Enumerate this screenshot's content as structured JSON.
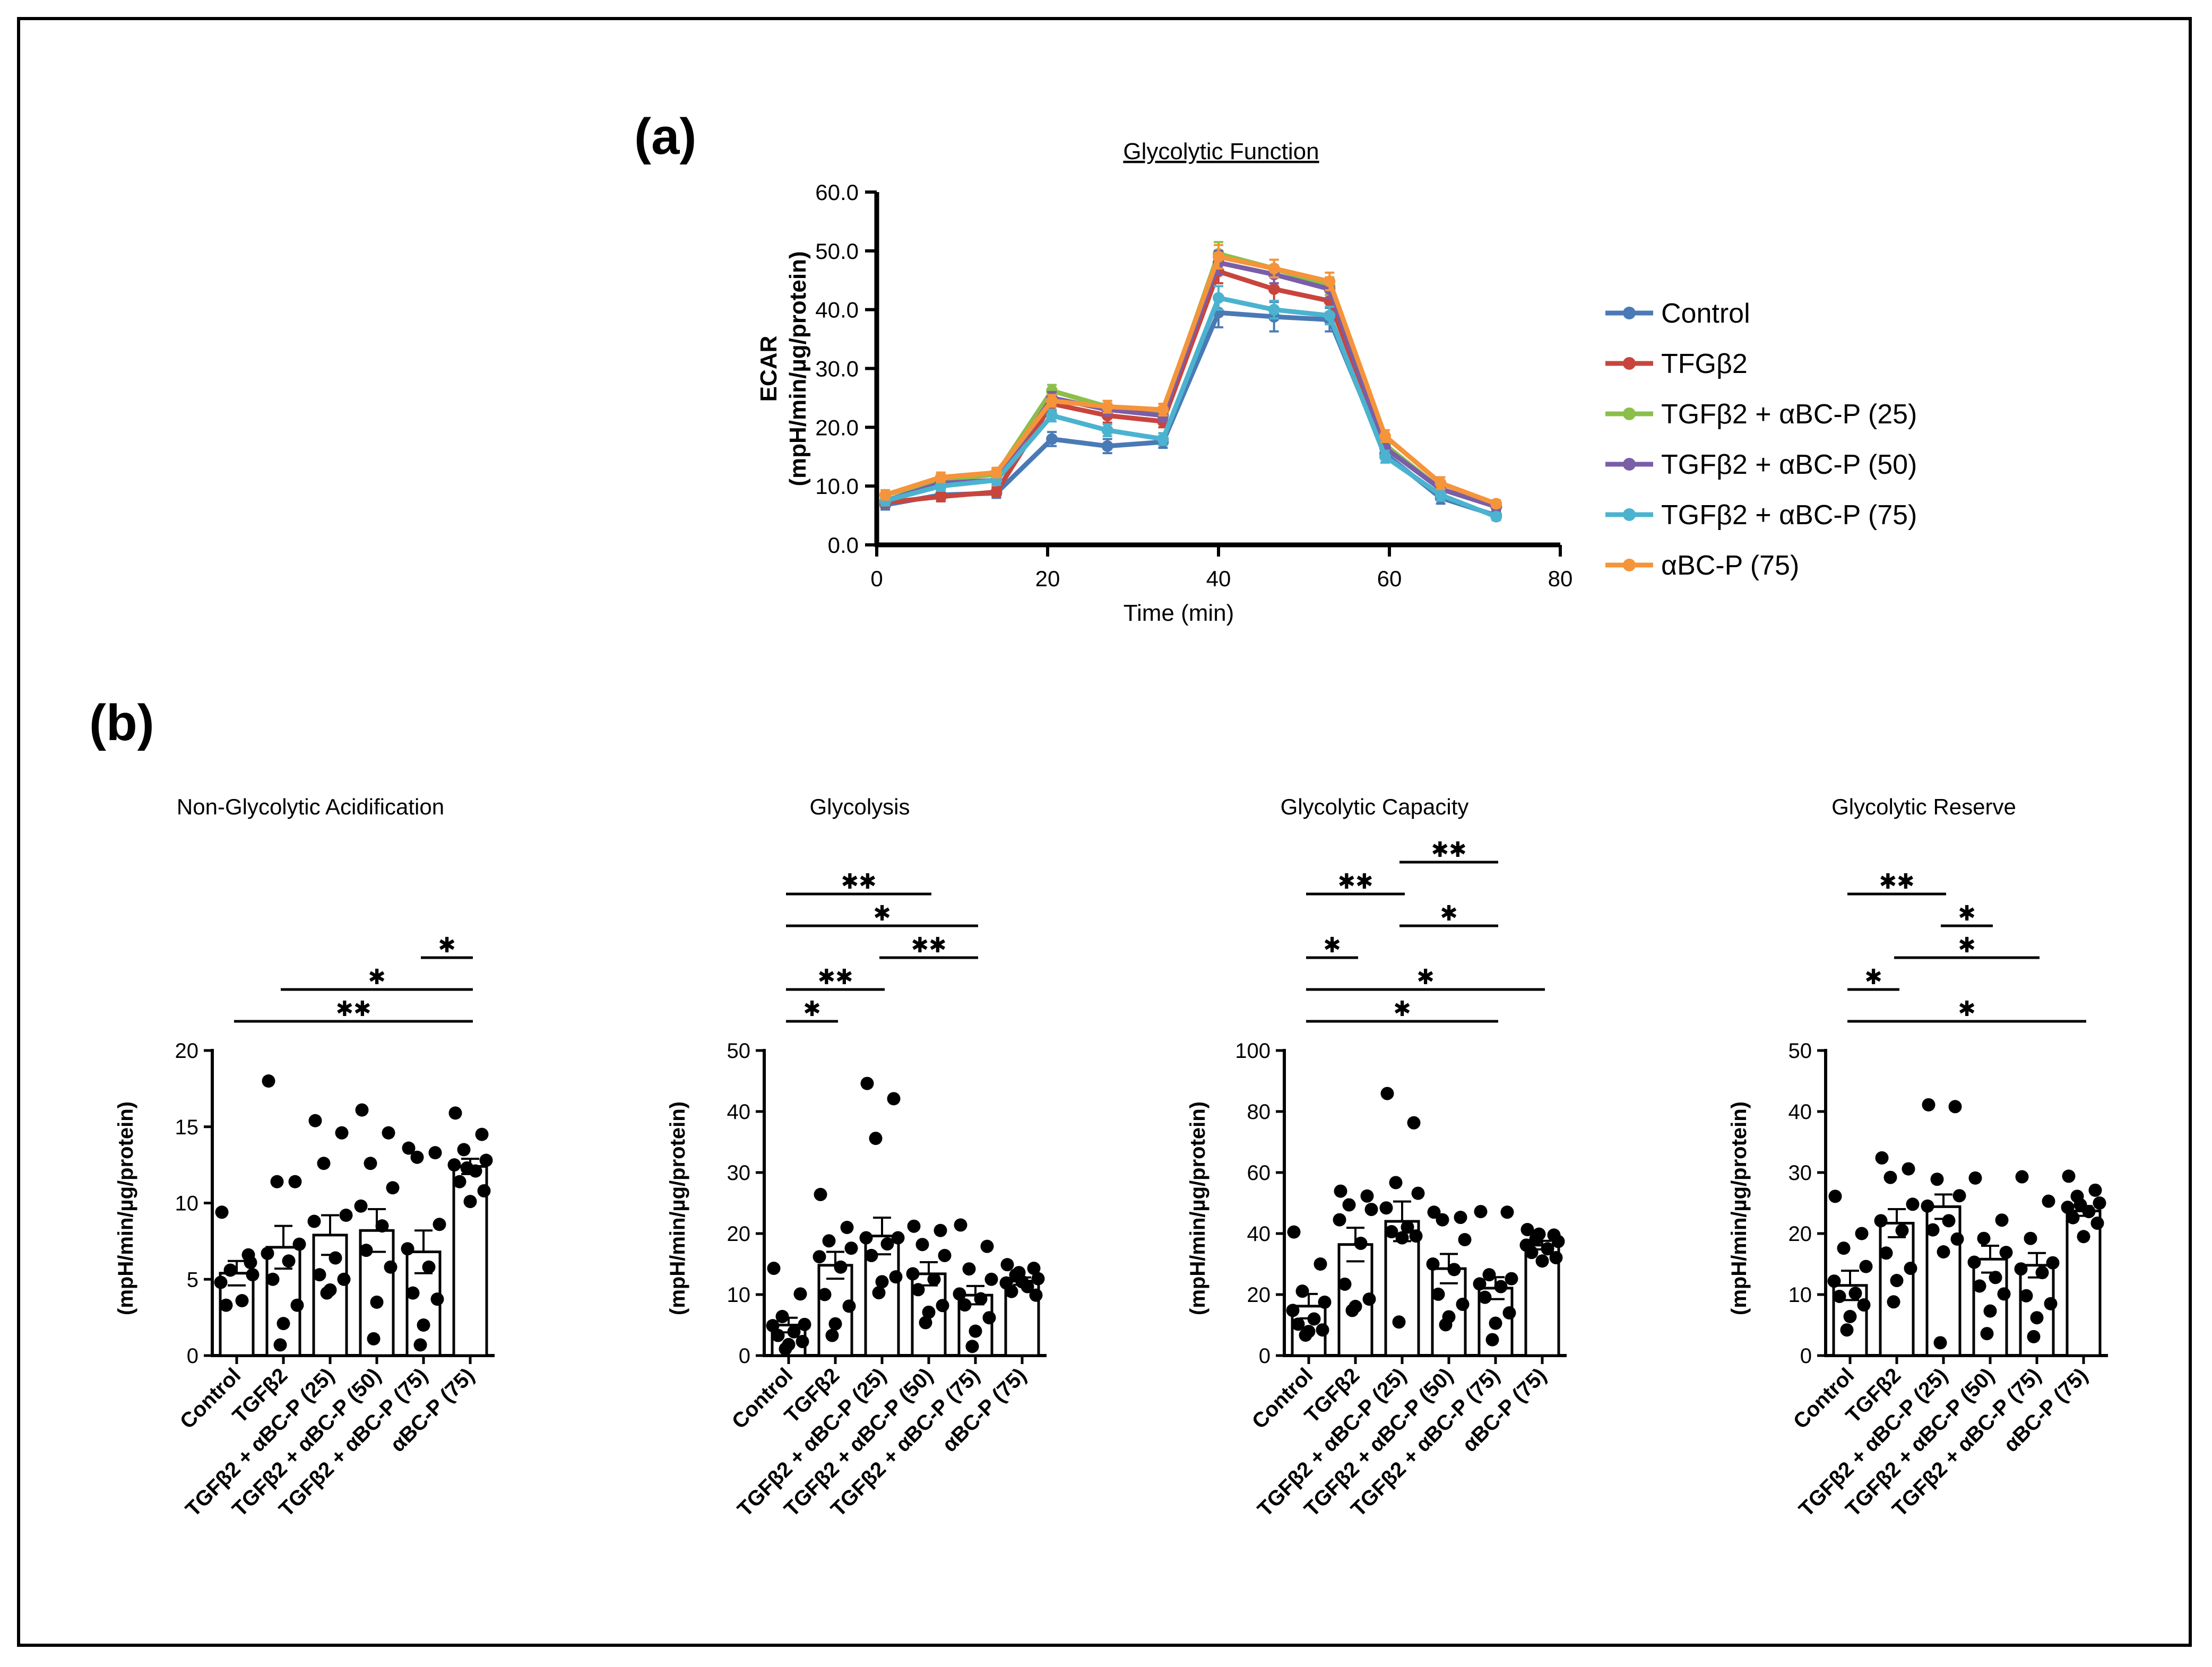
{
  "figure": {
    "label_a": "(a)",
    "label_b": "(b)"
  },
  "chart_data": [
    {
      "id": "glycolytic-function",
      "type": "line",
      "title": "Glycolytic Function",
      "xlabel": "Time (min)",
      "ylabel": [
        "ECAR",
        "(mpH/min/µg/protein)"
      ],
      "xlim": [
        0,
        80
      ],
      "ylim": [
        0,
        60
      ],
      "xticks": [
        0,
        20,
        40,
        60,
        80
      ],
      "xtick_labels": [
        "0",
        "20",
        "40",
        "60",
        "80"
      ],
      "yticks": [
        0,
        10,
        20,
        30,
        40,
        50,
        60
      ],
      "ytick_labels": [
        "0.0",
        "10.0",
        "20.0",
        "30.0",
        "40.0",
        "50.0",
        "60.0"
      ],
      "legend_position": "right",
      "x": [
        1,
        7.5,
        14,
        20.5,
        27,
        33.5,
        40,
        46.5,
        53,
        59.5,
        66,
        72.5
      ],
      "series": [
        {
          "name": "Control",
          "color": "#4a7ab5",
          "values": [
            6.8,
            8.5,
            8.8,
            18,
            16.8,
            17.5,
            39.5,
            38.8,
            38.3,
            15.5,
            8,
            5
          ],
          "err": [
            0.8,
            0.8,
            0.8,
            1.2,
            1.2,
            1,
            2.5,
            2.5,
            2,
            1.5,
            1,
            0.6
          ]
        },
        {
          "name": "TFGβ2",
          "color": "#c8453d",
          "values": [
            7.2,
            8.2,
            9,
            24,
            22,
            21,
            46.5,
            43.5,
            41.5,
            16.5,
            9.5,
            6.5
          ],
          "err": [
            0.8,
            0.8,
            0.8,
            1.2,
            1.2,
            1,
            2,
            2,
            2,
            1.2,
            1,
            0.6
          ]
        },
        {
          "name": "TGFβ2 + αBC-P (25)",
          "color": "#8bbf4a",
          "values": [
            8.5,
            11,
            12,
            26.2,
            23.5,
            22.5,
            49.5,
            47,
            44,
            17,
            9.5,
            6.5
          ],
          "err": [
            0.8,
            0.8,
            0.8,
            1,
            1,
            1,
            2,
            1.5,
            1.5,
            1,
            1,
            0.6
          ]
        },
        {
          "name": "TGFβ2 + αBC-P (50)",
          "color": "#7a5ea8",
          "values": [
            7.5,
            10.5,
            11,
            25,
            23,
            22,
            48,
            46,
            43.5,
            16.5,
            9.5,
            6.5
          ],
          "err": [
            0.8,
            0.8,
            0.8,
            1,
            1,
            1,
            2,
            1.5,
            1.5,
            1,
            1,
            0.6
          ]
        },
        {
          "name": "TGFβ2 + αBC-P (75)",
          "color": "#4bb3cf",
          "values": [
            7.5,
            10,
            11,
            22,
            19.5,
            18,
            42,
            40,
            39,
            15,
            8.5,
            4.8
          ],
          "err": [
            0.8,
            0.8,
            0.8,
            1,
            1,
            1,
            2,
            1.5,
            1.5,
            1,
            1,
            0.6
          ]
        },
        {
          "name": "αBC-P (75)",
          "color": "#f5943a",
          "values": [
            8.5,
            11.5,
            12.3,
            24.5,
            23.5,
            23,
            49,
            47,
            44.8,
            18.5,
            10.5,
            7
          ],
          "err": [
            0.8,
            0.8,
            0.8,
            1,
            1,
            1,
            2,
            1.5,
            1.5,
            1,
            1,
            0.6
          ]
        }
      ]
    },
    {
      "id": "non-glycolytic-acidification",
      "type": "bar",
      "title": "Non-Glycolytic Acidification",
      "ylabel": "(mpH/min/µg/protein)",
      "ylim": [
        0,
        20
      ],
      "yticks": [
        0,
        5,
        10,
        15,
        20
      ],
      "categories": [
        "Control",
        "TGFβ2",
        "TGFβ2 + αBC-P (25)",
        "TGFβ2 + αBC-P (50)",
        "TGFβ2 + αBC-P (75)",
        "αBC-P (75)"
      ],
      "values": [
        5.4,
        7.1,
        7.9,
        8.2,
        6.8,
        12.4
      ],
      "sem": [
        0.8,
        1.4,
        1.3,
        1.4,
        1.4,
        0.5
      ],
      "points": [
        [
          9.4,
          6.6,
          5.6,
          5.3,
          4.8,
          3.6,
          3.3,
          6.1
        ],
        [
          18,
          11.4,
          11.4,
          7.3,
          6.7,
          6.2,
          5.0,
          3.3,
          2.1,
          0.7
        ],
        [
          15.4,
          14.6,
          12.6,
          9.2,
          8.8,
          6.4,
          5.3,
          5.0,
          4.3,
          4.1
        ],
        [
          16.1,
          14.6,
          12.6,
          11.0,
          9.8,
          8.5,
          6.9,
          5.8,
          3.5,
          1.1
        ],
        [
          13.6,
          13.3,
          13.0,
          8.6,
          7.0,
          5.8,
          4.1,
          3.7,
          2.0,
          0.7
        ],
        [
          15.9,
          14.5,
          13.5,
          12.8,
          12.5,
          12.1,
          11.4,
          10.8,
          10.1,
          12.3
        ]
      ],
      "significance": [
        {
          "from": 0,
          "to": 5,
          "label": "✱✱"
        },
        {
          "from": 1,
          "to": 5,
          "label": "✱"
        },
        {
          "from": 4,
          "to": 5,
          "label": "✱"
        }
      ]
    },
    {
      "id": "glycolysis",
      "type": "bar",
      "title": "Glycolysis",
      "ylabel": "(mpH/min/µg/protein)",
      "ylim": [
        0,
        50
      ],
      "yticks": [
        0,
        10,
        20,
        30,
        40,
        50
      ],
      "categories": [
        "Control",
        "TGFβ2",
        "TGFβ2 + αBC-P (25)",
        "TGFβ2 + αBC-P (50)",
        "TGFβ2 + αBC-P (75)",
        "αBC-P (75)"
      ],
      "values": [
        5.0,
        14.8,
        19.6,
        13.4,
        9.9,
        12.2
      ],
      "sem": [
        1.2,
        2.2,
        3.0,
        1.9,
        1.5,
        0.6
      ],
      "points": [
        [
          14.3,
          10.1,
          6.4,
          5.1,
          4.9,
          3.9,
          3.3,
          2.3,
          1.8,
          1.1
        ],
        [
          26.4,
          21.0,
          18.8,
          17.6,
          16.2,
          14.5,
          10.0,
          8.1,
          5.2,
          3.3
        ],
        [
          44.6,
          42.1,
          35.6,
          19.3,
          19.3,
          18.3,
          16.4,
          12.9,
          12.1,
          10.3
        ],
        [
          21.2,
          20.5,
          18.2,
          16.4,
          13.4,
          12.5,
          10.8,
          8.2,
          7.1,
          5.4
        ],
        [
          21.4,
          17.9,
          14.2,
          12.5,
          10.1,
          9.3,
          8.3,
          6.2,
          4.0,
          1.5
        ],
        [
          14.9,
          14.3,
          13.2,
          12.6,
          11.9,
          11.3,
          10.5,
          9.9,
          12.1,
          13.6
        ]
      ],
      "significance": [
        {
          "from": 0,
          "to": 1,
          "label": "✱"
        },
        {
          "from": 0,
          "to": 2,
          "label": "✱✱"
        },
        {
          "from": 2,
          "to": 4,
          "label": "✱✱"
        },
        {
          "from": 0,
          "to": 4,
          "label": "✱"
        },
        {
          "from": 0,
          "to": 3,
          "label": "✱✱"
        }
      ]
    },
    {
      "id": "glycolytic-capacity",
      "type": "bar",
      "title": "Glycolytic Capacity",
      "ylabel": "(mpH/min/µg/protein)",
      "ylim": [
        0,
        100
      ],
      "yticks": [
        0,
        20,
        40,
        60,
        80,
        100
      ],
      "categories": [
        "Control",
        "TGFβ2",
        "TGFβ2 + αBC-P (25)",
        "TGFβ2 + αBC-P (50)",
        "TGFβ2 + αBC-P (75)",
        "αBC-P (75)"
      ],
      "values": [
        16.2,
        36.4,
        44.0,
        28.5,
        22.1,
        36.2
      ],
      "sem": [
        4.0,
        5.5,
        6.5,
        4.8,
        3.6,
        1.4
      ],
      "points": [
        [
          40.5,
          30.0,
          21.1,
          17.5,
          14.8,
          12.0,
          10.3,
          8.4,
          7.9,
          6.7
        ],
        [
          53.9,
          52.3,
          49.4,
          47.9,
          44.5,
          36.8,
          23.4,
          18.5,
          16.1,
          14.8
        ],
        [
          85.9,
          76.3,
          56.7,
          53.2,
          48.4,
          42.1,
          40.6,
          39.2,
          38.6,
          11.0
        ],
        [
          47.0,
          45.3,
          44.5,
          38.0,
          30.0,
          28.2,
          20.1,
          16.8,
          12.7,
          10.1
        ],
        [
          47.2,
          47.0,
          26.5,
          25.2,
          23.5,
          22.6,
          19.1,
          14.0,
          10.6,
          5.2
        ],
        [
          41.3,
          39.5,
          38.2,
          37.4,
          36.2,
          35.0,
          33.8,
          32.1,
          31.0,
          39.8
        ]
      ],
      "significance": [
        {
          "from": 0,
          "to": 4,
          "label": "✱"
        },
        {
          "from": 0,
          "to": 5,
          "label": "✱"
        },
        {
          "from": 0,
          "to": 1,
          "label": "✱"
        },
        {
          "from": 2,
          "to": 4,
          "label": "✱"
        },
        {
          "from": 0,
          "to": 2,
          "label": "✱✱"
        },
        {
          "from": 2,
          "to": 4,
          "label": "✱✱"
        }
      ]
    },
    {
      "id": "glycolytic-reserve",
      "type": "bar",
      "title": "Glycolytic Reserve",
      "ylabel": "(mpH/min/µg/protein)",
      "ylim": [
        0,
        50
      ],
      "yticks": [
        0,
        10,
        20,
        30,
        40,
        50
      ],
      "categories": [
        "Control",
        "TGFβ2",
        "TGFβ2 + αBC-P (25)",
        "TGFβ2 + αBC-P (50)",
        "TGFβ2 + αBC-P (75)",
        "αBC-P (75)"
      ],
      "values": [
        11.5,
        21.7,
        24.4,
        15.8,
        14.8,
        23.7
      ],
      "sem": [
        2.4,
        2.3,
        2.0,
        2.2,
        2.0,
        0.8
      ],
      "points": [
        [
          26.1,
          20.0,
          17.6,
          14.6,
          12.2,
          10.2,
          9.7,
          8.3,
          6.4,
          4.2
        ],
        [
          32.4,
          30.6,
          29.2,
          24.8,
          22.1,
          20.5,
          16.8,
          14.3,
          12.3,
          8.8
        ],
        [
          41.1,
          40.8,
          28.9,
          26.2,
          24.5,
          22.1,
          20.6,
          19.1,
          17.0,
          2.1
        ],
        [
          29.1,
          22.2,
          19.2,
          16.9,
          15.3,
          12.8,
          11.4,
          10.1,
          7.3,
          3.6
        ],
        [
          29.3,
          25.3,
          19.2,
          15.2,
          14.2,
          13.6,
          9.8,
          8.5,
          6.2,
          3.1
        ],
        [
          29.4,
          27.1,
          26.1,
          25.0,
          24.3,
          23.6,
          22.6,
          21.7,
          19.5,
          24.7
        ]
      ],
      "significance": [
        {
          "from": 0,
          "to": 5,
          "label": "✱"
        },
        {
          "from": 0,
          "to": 1,
          "label": "✱"
        },
        {
          "from": 1,
          "to": 4,
          "label": "✱"
        },
        {
          "from": 2,
          "to": 3,
          "label": "✱"
        },
        {
          "from": 0,
          "to": 2,
          "label": "✱✱"
        }
      ]
    }
  ]
}
